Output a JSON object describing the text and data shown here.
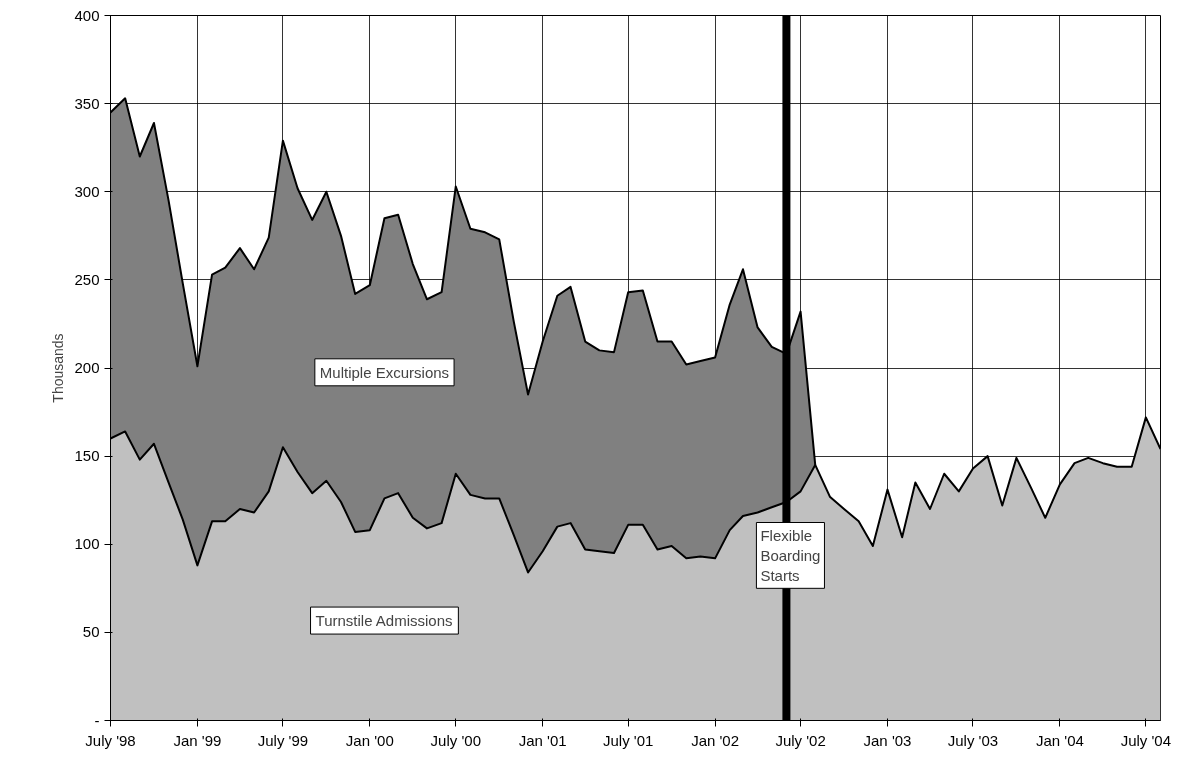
{
  "chart_data": {
    "type": "area",
    "stacked": true,
    "ylabel": "Thousands",
    "x": [
      "1998-07",
      "1998-08",
      "1998-09",
      "1998-10",
      "1998-11",
      "1998-12",
      "1999-01",
      "1999-02",
      "1999-03",
      "1999-04",
      "1999-05",
      "1999-06",
      "1999-07",
      "1999-08",
      "1999-09",
      "1999-10",
      "1999-11",
      "1999-12",
      "2000-01",
      "2000-02",
      "2000-03",
      "2000-04",
      "2000-05",
      "2000-06",
      "2000-07",
      "2000-08",
      "2000-09",
      "2000-10",
      "2000-11",
      "2000-12",
      "2001-01",
      "2001-02",
      "2001-03",
      "2001-04",
      "2001-05",
      "2001-06",
      "2001-07",
      "2001-08",
      "2001-09",
      "2001-10",
      "2001-11",
      "2001-12",
      "2002-01",
      "2002-02",
      "2002-03",
      "2002-04",
      "2002-05",
      "2002-06",
      "2002-07",
      "2002-08",
      "2002-09",
      "2002-10",
      "2002-11",
      "2002-12",
      "2003-01",
      "2003-02",
      "2003-03",
      "2003-04",
      "2003-05",
      "2003-06",
      "2003-07",
      "2003-08",
      "2003-09",
      "2003-10",
      "2003-11",
      "2003-12",
      "2004-01",
      "2004-02",
      "2004-03",
      "2004-04",
      "2004-05",
      "2004-06",
      "2004-07",
      "2004-08"
    ],
    "series": [
      {
        "name": "Turnstile Admissions",
        "color": "#c0c0c0",
        "values": [
          160,
          164,
          148,
          157,
          135,
          114,
          88,
          113,
          113,
          120,
          118,
          130,
          155,
          141,
          129,
          136,
          124,
          107,
          108,
          126,
          129,
          115,
          109,
          112,
          140,
          128,
          126,
          126,
          105,
          84,
          96,
          110,
          112,
          97,
          96,
          95,
          111,
          111,
          97,
          99,
          92,
          93,
          92,
          108,
          116,
          118,
          121,
          124,
          130,
          145,
          127,
          120,
          113,
          99,
          131,
          104,
          135,
          120,
          140,
          130,
          143,
          150,
          122,
          149,
          132,
          115,
          134,
          146,
          149,
          146,
          144,
          144,
          172,
          154
        ]
      },
      {
        "name": "Multiple Excursions",
        "color": "#808080",
        "values": [
          185,
          189,
          172,
          182,
          160,
          134,
          113,
          140,
          144,
          148,
          138,
          144,
          174,
          161,
          155,
          164,
          151,
          135,
          139,
          159,
          158,
          144,
          130,
          131,
          163,
          151,
          151,
          147,
          121,
          101,
          119,
          131,
          134,
          118,
          114,
          114,
          132,
          133,
          118,
          116,
          110,
          111,
          114,
          128,
          140,
          105,
          91,
          84,
          102,
          0,
          null,
          null,
          null,
          null,
          null,
          null,
          null,
          null,
          null,
          null,
          null,
          null,
          null,
          null,
          null,
          null,
          null,
          null,
          null,
          null,
          null,
          null,
          null,
          null
        ]
      }
    ],
    "xlim": [
      "1998-07",
      "2004-08"
    ],
    "xticks": [
      {
        "value": "1998-07",
        "label": "July '98"
      },
      {
        "value": "1999-01",
        "label": "Jan '99"
      },
      {
        "value": "1999-07",
        "label": "July '99"
      },
      {
        "value": "2000-01",
        "label": "Jan '00"
      },
      {
        "value": "2000-07",
        "label": "July '00"
      },
      {
        "value": "2001-01",
        "label": "Jan '01"
      },
      {
        "value": "2001-07",
        "label": "July '01"
      },
      {
        "value": "2002-01",
        "label": "Jan '02"
      },
      {
        "value": "2002-07",
        "label": "July '02"
      },
      {
        "value": "2003-01",
        "label": "Jan '03"
      },
      {
        "value": "2003-07",
        "label": "July '03"
      },
      {
        "value": "2004-01",
        "label": "Jan '04"
      },
      {
        "value": "2004-07",
        "label": "July '04"
      }
    ],
    "ylim": [
      0,
      400
    ],
    "yticks": [
      {
        "value": 0,
        "label": "-"
      },
      50,
      100,
      150,
      200,
      250,
      300,
      350,
      400
    ],
    "grid": true,
    "ref_lines": [
      {
        "axis": "x",
        "value": "2002-06",
        "label": "Flexible Boarding Starts",
        "color": "#000000"
      }
    ]
  }
}
